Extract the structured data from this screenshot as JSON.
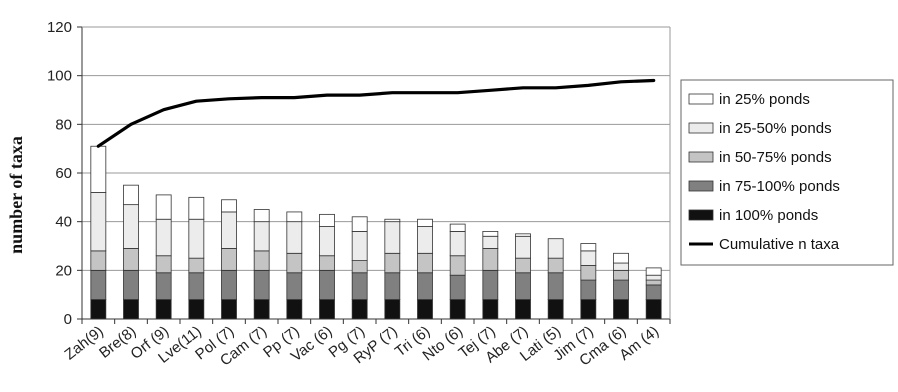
{
  "chart_data": {
    "type": "bar",
    "stacked": true,
    "ylabel": "number of taxa",
    "xlabel": "",
    "title": "",
    "ylim": [
      0,
      120
    ],
    "yticks": [
      0,
      20,
      40,
      60,
      80,
      100,
      120
    ],
    "grid": true,
    "legend_position": "right",
    "categories": [
      "Zah(9)",
      "Bre(8)",
      "Orf (9)",
      "Lve(11)",
      "Pol (7)",
      "Cam (7)",
      "Pp (7)",
      "Vac (6)",
      "Pg (7)",
      "RyP (7)",
      "Tri (6)",
      "Nto (6)",
      "Tej (7)",
      "Abe (7)",
      "Lati (5)",
      "Jim (7)",
      "Cma (6)",
      "Am (4)"
    ],
    "series": [
      {
        "name": "in 100% ponds",
        "color": "#111111",
        "values": [
          8,
          8,
          8,
          8,
          8,
          8,
          8,
          8,
          8,
          8,
          8,
          8,
          8,
          8,
          8,
          8,
          8,
          8
        ]
      },
      {
        "name": "in 75-100% ponds",
        "color": "#808080",
        "values": [
          12,
          12,
          11,
          11,
          12,
          12,
          11,
          12,
          11,
          11,
          11,
          10,
          12,
          11,
          11,
          8,
          8,
          6
        ]
      },
      {
        "name": "in 50-75% ponds",
        "color": "#c4c4c4",
        "values": [
          8,
          9,
          7,
          6,
          9,
          8,
          8,
          6,
          5,
          8,
          8,
          8,
          9,
          6,
          6,
          6,
          4,
          2
        ]
      },
      {
        "name": "in 25-50% ponds",
        "color": "#ececec",
        "values": [
          24,
          18,
          15,
          16,
          15,
          12,
          13,
          12,
          12,
          13,
          11,
          10,
          5,
          9,
          8,
          6,
          3,
          2
        ]
      },
      {
        "name": "in 25% ponds",
        "color": "#ffffff",
        "values": [
          19,
          8,
          10,
          9,
          5,
          5,
          4,
          5,
          6,
          1,
          3,
          3,
          2,
          1,
          0,
          3,
          4,
          3
        ]
      }
    ],
    "cumulative": {
      "name": "Cumulative n taxa",
      "color": "#000000",
      "values": [
        71,
        80,
        86,
        89.5,
        90.5,
        91,
        91,
        92,
        92,
        93,
        93,
        93,
        94,
        95,
        95,
        96,
        97.5,
        98
      ]
    },
    "legend_order": [
      "in 25% ponds",
      "in 25-50% ponds",
      "in 50-75% ponds",
      "in 75-100% ponds",
      "in 100% ponds",
      "Cumulative n taxa"
    ]
  }
}
